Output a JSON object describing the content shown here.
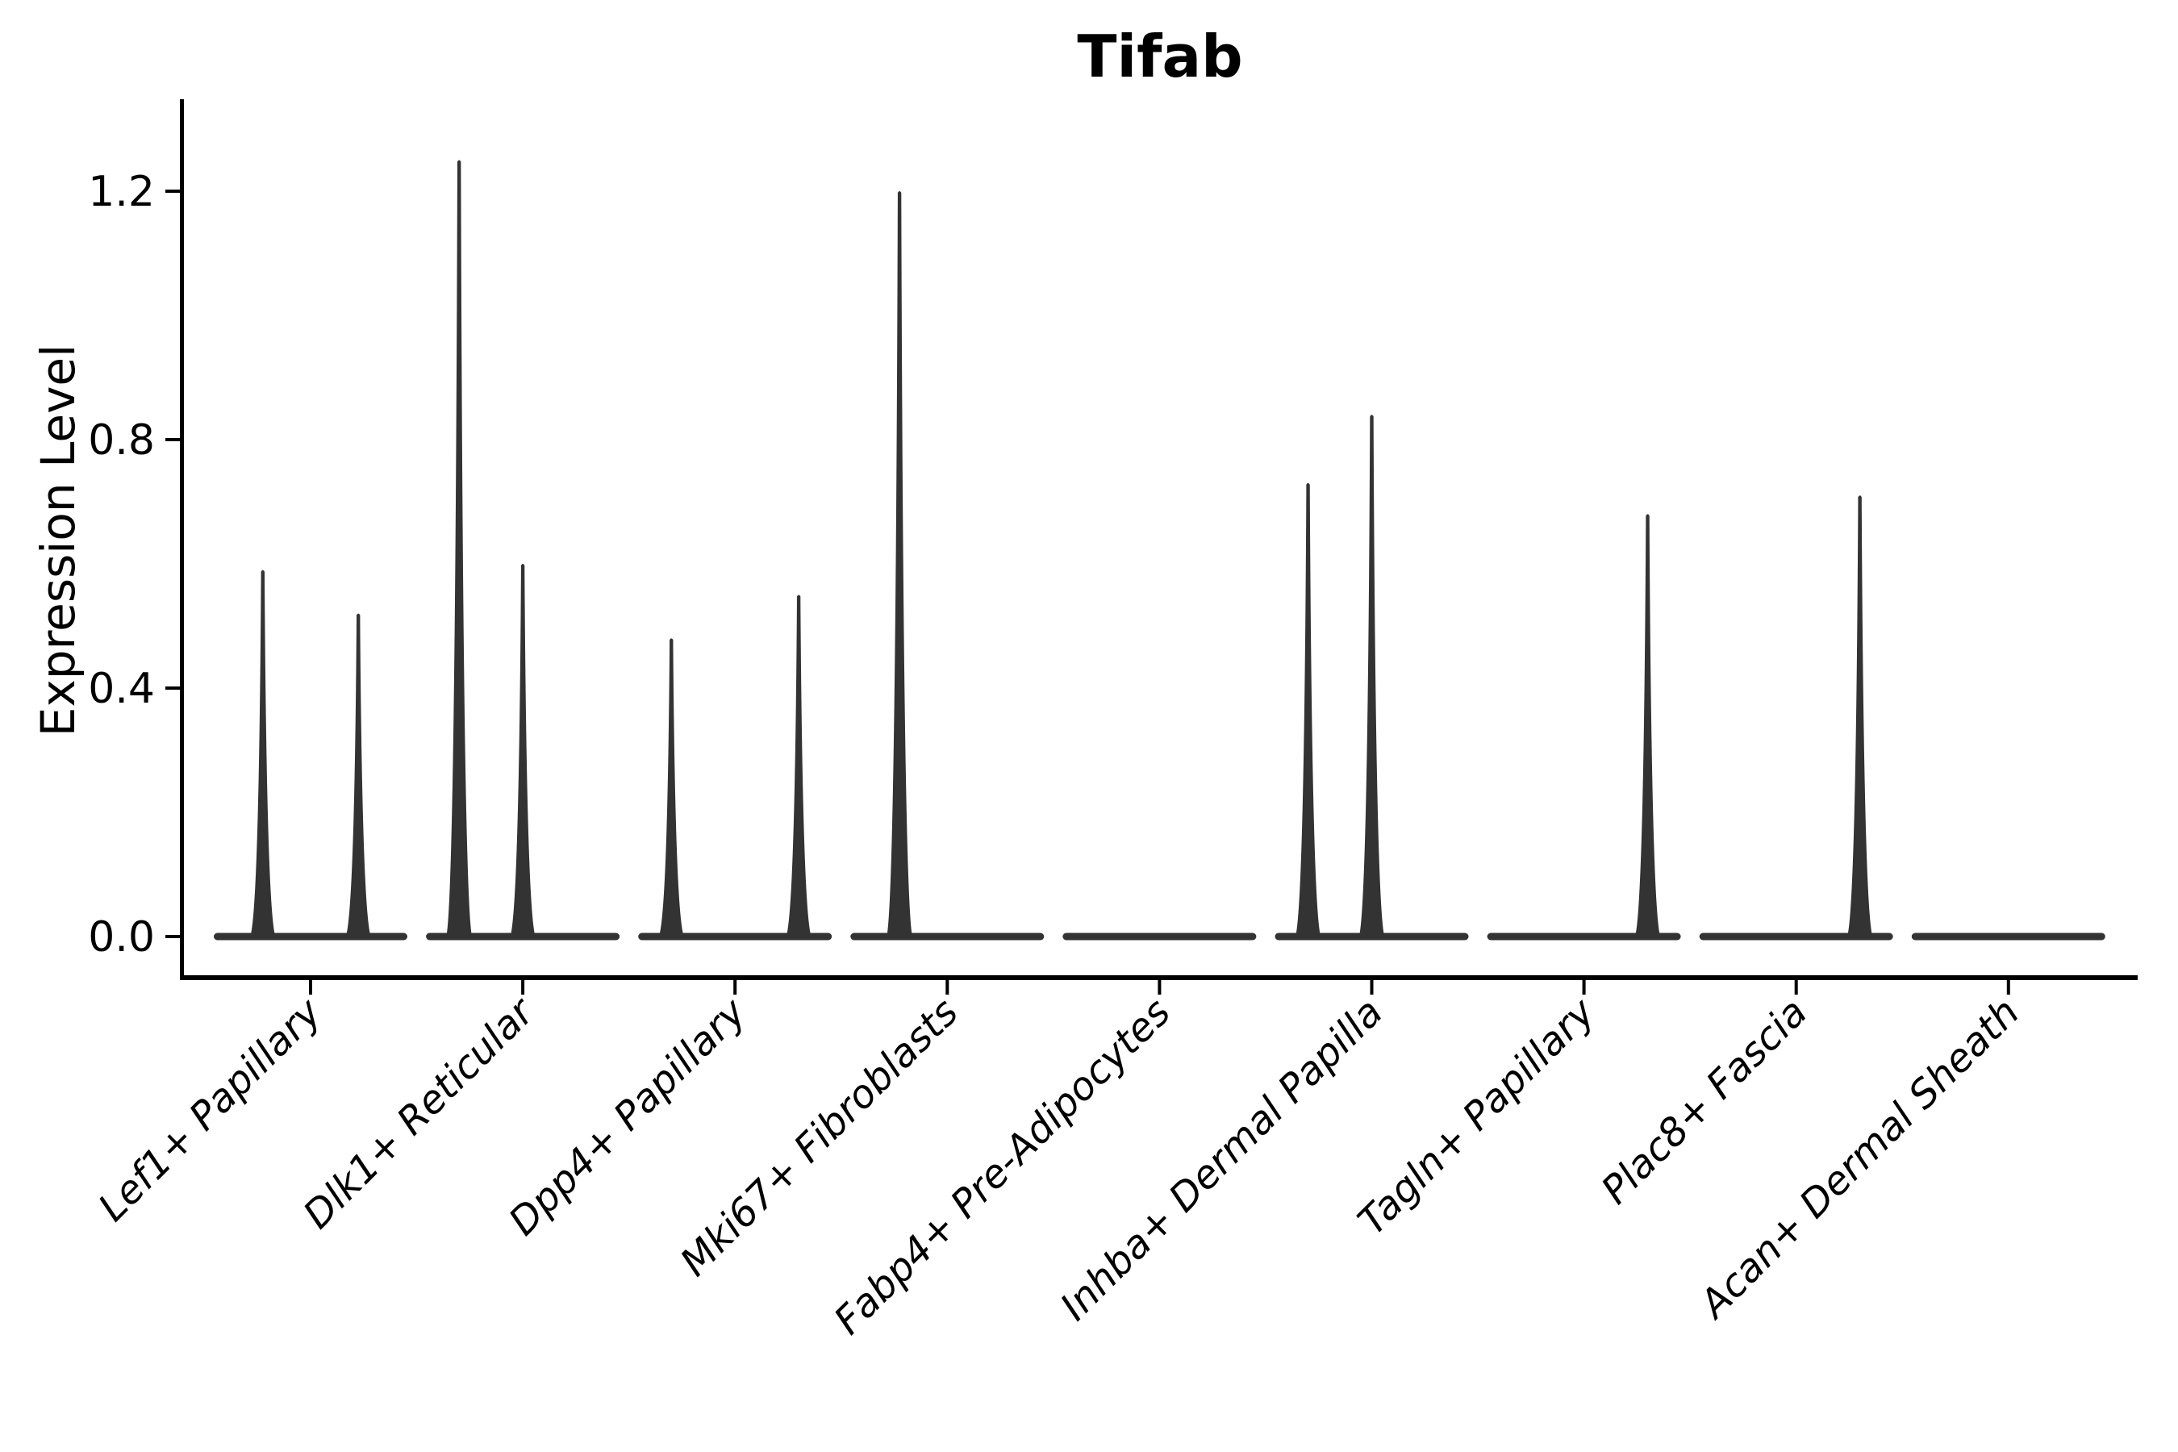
{
  "chart_data": {
    "type": "violin",
    "title": "Tifab",
    "ylabel": "Expression Level",
    "xlabel": "",
    "yticks": [
      0.0,
      0.4,
      0.8,
      1.2
    ],
    "ytick_labels": [
      "0.0",
      "0.4",
      "0.8",
      "1.2"
    ],
    "ylim": [
      -0.07,
      1.35
    ],
    "grid": false,
    "legend": null,
    "background_color": "#ffffff",
    "violin_color": "#333333",
    "axis_color": "#000000",
    "x_tick_label_style": "italic, rotated 45deg, right-anchored",
    "categories": [
      {
        "label": "Lef1+ Papillary",
        "n_groups": 2,
        "peaks": [
          0.59,
          0.52
        ]
      },
      {
        "label": "Dlk1+ Reticular",
        "n_groups": 3,
        "peaks": [
          1.25,
          0.6,
          null
        ]
      },
      {
        "label": "Dpp4+ Papillary",
        "n_groups": 3,
        "peaks": [
          0.48,
          null,
          0.55
        ]
      },
      {
        "label": "Mki67+ Fibroblasts",
        "n_groups": 2,
        "peaks": [
          1.2,
          null
        ]
      },
      {
        "label": "Fabp4+ Pre-Adipocytes",
        "n_groups": 2,
        "peaks": [
          null,
          null
        ]
      },
      {
        "label": "Inhba+ Dermal Papilla",
        "n_groups": 3,
        "peaks": [
          0.73,
          0.84,
          null
        ]
      },
      {
        "label": "Tagln+ Papillary",
        "n_groups": 3,
        "peaks": [
          null,
          null,
          0.68
        ]
      },
      {
        "label": "Plac8+ Fascia",
        "n_groups": 3,
        "peaks": [
          null,
          null,
          0.71
        ]
      },
      {
        "label": "Acan+ Dermal Sheath",
        "n_groups": 2,
        "peaks": [
          null,
          null
        ]
      }
    ]
  }
}
